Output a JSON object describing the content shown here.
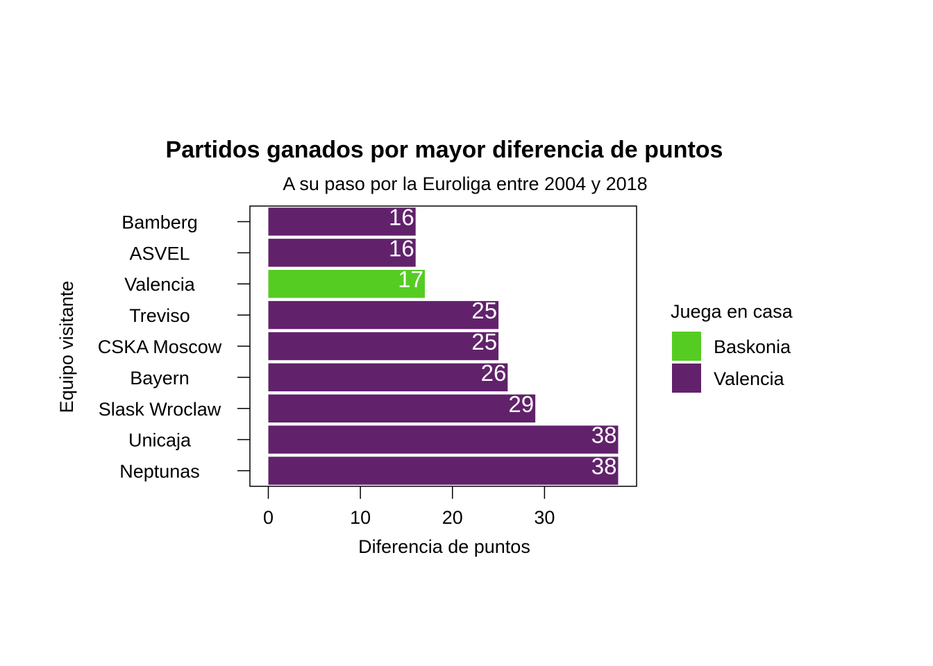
{
  "chart_data": {
    "type": "bar",
    "orientation": "horizontal",
    "title": "Partidos ganados por mayor diferencia de puntos",
    "subtitle": "A su paso por la Euroliga entre 2004 y 2018",
    "xlabel": "Diferencia de puntos",
    "ylabel": "Equipo visitante",
    "xlim": [
      -2,
      40
    ],
    "xticks": [
      0,
      10,
      20,
      30
    ],
    "grid": false,
    "legend": {
      "title": "Juega en casa",
      "position": "right",
      "entries": [
        {
          "label": "Baskonia",
          "color": "#55cc22"
        },
        {
          "label": "Valencia",
          "color": "#61226b"
        }
      ]
    },
    "categories": [
      "Bamberg",
      "ASVEL",
      "Valencia",
      "Treviso",
      "CSKA Moscow",
      "Bayern",
      "Slask Wroclaw",
      "Unicaja",
      "Neptunas"
    ],
    "values": [
      16,
      16,
      17,
      25,
      25,
      26,
      29,
      38,
      38
    ],
    "groups": [
      "Valencia",
      "Valencia",
      "Baskonia",
      "Valencia",
      "Valencia",
      "Valencia",
      "Valencia",
      "Valencia",
      "Valencia"
    ],
    "data_labels": [
      "16",
      "16",
      "17",
      "25",
      "25",
      "26",
      "29",
      "38",
      "38"
    ],
    "label_color": "#ffffff"
  }
}
